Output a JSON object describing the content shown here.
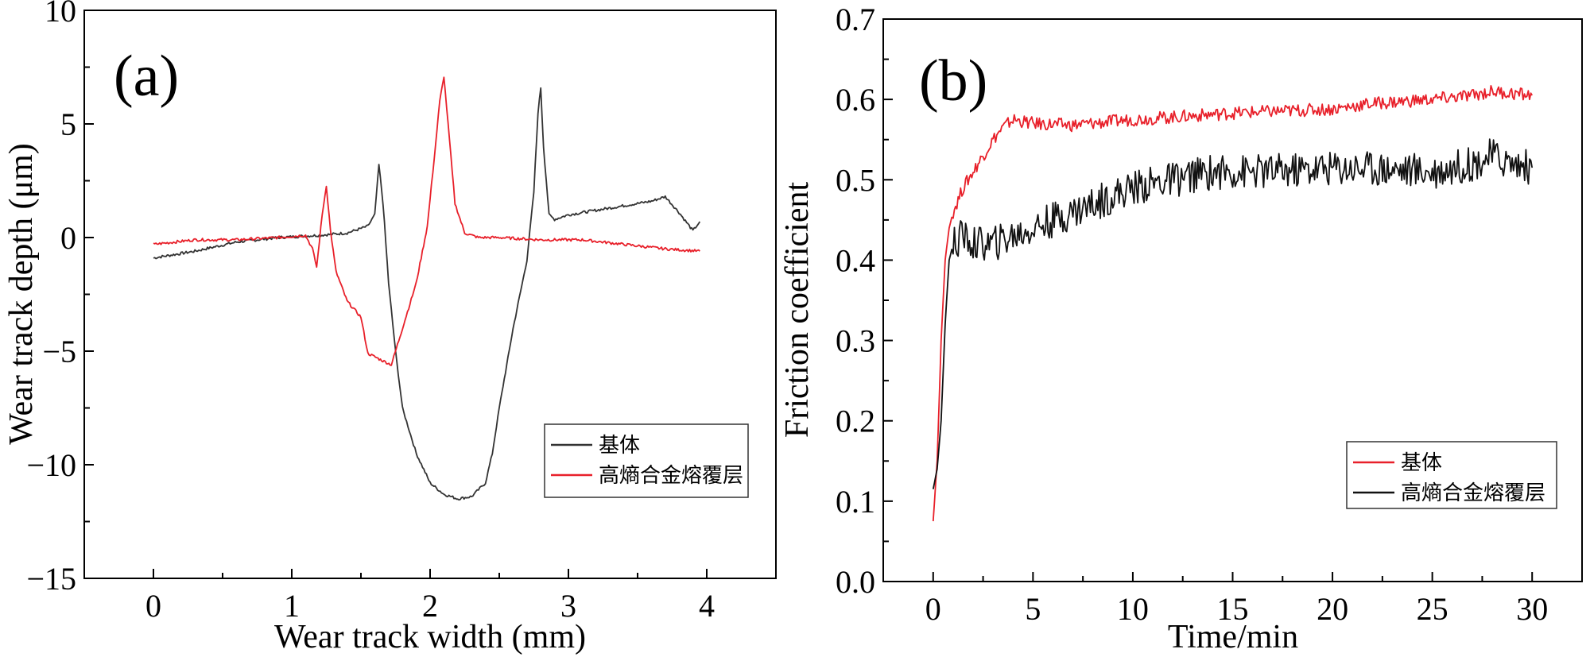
{
  "chart_data": [
    {
      "type": "line",
      "panel_label": "(a)",
      "xlabel": "Wear track width (mm)",
      "ylabel": "Wear track depth (μm)",
      "xlim": [
        -0.5,
        4.5
      ],
      "ylim": [
        -15,
        10
      ],
      "xticks": [
        0,
        1,
        2,
        3,
        4
      ],
      "xtick_labels": [
        "0",
        "1",
        "2",
        "3",
        "4"
      ],
      "yticks": [
        -15,
        -10,
        -5,
        0,
        5,
        10
      ],
      "ytick_labels": [
        "−15",
        "−10",
        "−5",
        "0",
        "5",
        "10"
      ],
      "legend_position": "lower-right",
      "series": [
        {
          "name": "基体",
          "color": "#333333",
          "x": [
            0.0,
            0.3,
            0.6,
            0.9,
            1.2,
            1.4,
            1.55,
            1.6,
            1.63,
            1.66,
            1.7,
            1.75,
            1.8,
            1.85,
            1.9,
            2.0,
            2.1,
            2.2,
            2.3,
            2.35,
            2.4,
            2.45,
            2.5,
            2.6,
            2.7,
            2.75,
            2.78,
            2.8,
            2.82,
            2.86,
            2.9,
            3.0,
            3.2,
            3.4,
            3.6,
            3.7,
            3.8,
            3.9,
            3.95
          ],
          "y": [
            -0.9,
            -0.6,
            -0.2,
            0.0,
            0.1,
            0.2,
            0.5,
            1.0,
            3.2,
            1.5,
            -2.0,
            -5.0,
            -7.5,
            -8.5,
            -9.5,
            -10.8,
            -11.3,
            -11.5,
            -11.4,
            -11.1,
            -10.8,
            -9.5,
            -7.5,
            -4.0,
            -1.0,
            2.0,
            5.5,
            6.6,
            4.0,
            1.0,
            0.8,
            1.0,
            1.2,
            1.4,
            1.6,
            1.8,
            1.1,
            0.3,
            0.7
          ]
        },
        {
          "name": "高熵合金熔覆层",
          "color": "#e8202a",
          "x": [
            0.0,
            0.3,
            0.6,
            0.9,
            1.1,
            1.15,
            1.18,
            1.22,
            1.25,
            1.28,
            1.32,
            1.4,
            1.5,
            1.55,
            1.65,
            1.72,
            1.8,
            1.9,
            1.98,
            2.03,
            2.07,
            2.1,
            2.13,
            2.18,
            2.25,
            2.35,
            2.5,
            2.8,
            3.1,
            3.4,
            3.7,
            3.95
          ],
          "y": [
            -0.3,
            -0.1,
            -0.1,
            0.0,
            0.1,
            -0.5,
            -1.3,
            1.0,
            2.3,
            0.3,
            -1.5,
            -2.8,
            -3.5,
            -5.1,
            -5.4,
            -5.6,
            -4.0,
            -2.0,
            0.5,
            3.5,
            6.0,
            7.1,
            5.0,
            1.5,
            0.2,
            0.0,
            0.0,
            -0.1,
            -0.1,
            -0.3,
            -0.5,
            -0.6
          ]
        }
      ]
    },
    {
      "type": "line",
      "panel_label": "(b)",
      "xlabel": "Time/min",
      "ylabel": "Friction coefficient",
      "xlim": [
        -2.5,
        32.5
      ],
      "ylim": [
        0.0,
        0.7
      ],
      "xticks": [
        0,
        5,
        10,
        15,
        20,
        25,
        30
      ],
      "xtick_labels": [
        "0",
        "5",
        "10",
        "15",
        "20",
        "25",
        "30"
      ],
      "yticks": [
        0.0,
        0.1,
        0.2,
        0.3,
        0.4,
        0.5,
        0.6,
        0.7
      ],
      "ytick_labels": [
        "0.0",
        "0.1",
        "0.2",
        "0.3",
        "0.4",
        "0.5",
        "0.6",
        "0.7"
      ],
      "legend_position": "lower-right",
      "series": [
        {
          "name": "基体",
          "color": "#e8202a",
          "x": [
            0.0,
            0.2,
            0.4,
            0.6,
            0.8,
            1.0,
            1.5,
            2.0,
            2.5,
            3.0,
            3.5,
            4.0,
            5.0,
            7.0,
            10.0,
            12.0,
            15.0,
            17.0,
            20.0,
            22.0,
            25.0,
            27.0,
            28.0,
            30.0
          ],
          "y": [
            0.075,
            0.15,
            0.3,
            0.4,
            0.44,
            0.46,
            0.49,
            0.51,
            0.53,
            0.55,
            0.565,
            0.575,
            0.57,
            0.568,
            0.575,
            0.578,
            0.583,
            0.585,
            0.588,
            0.595,
            0.6,
            0.605,
            0.61,
            0.605
          ]
        },
        {
          "name": "高熵合金熔覆层",
          "color": "#111111",
          "x": [
            0.0,
            0.2,
            0.4,
            0.6,
            0.8,
            1.0,
            1.5,
            2.0,
            3.0,
            4.0,
            5.0,
            6.0,
            7.0,
            8.0,
            9.0,
            10.0,
            11.0,
            12.0,
            13.0,
            14.0,
            15.0,
            17.0,
            20.0,
            22.0,
            25.0,
            27.0,
            28.0,
            29.0,
            30.0
          ],
          "y": [
            0.115,
            0.14,
            0.2,
            0.32,
            0.4,
            0.42,
            0.43,
            0.42,
            0.42,
            0.43,
            0.44,
            0.45,
            0.46,
            0.47,
            0.48,
            0.49,
            0.495,
            0.5,
            0.505,
            0.51,
            0.51,
            0.51,
            0.515,
            0.515,
            0.51,
            0.52,
            0.53,
            0.52,
            0.515
          ]
        }
      ]
    }
  ]
}
